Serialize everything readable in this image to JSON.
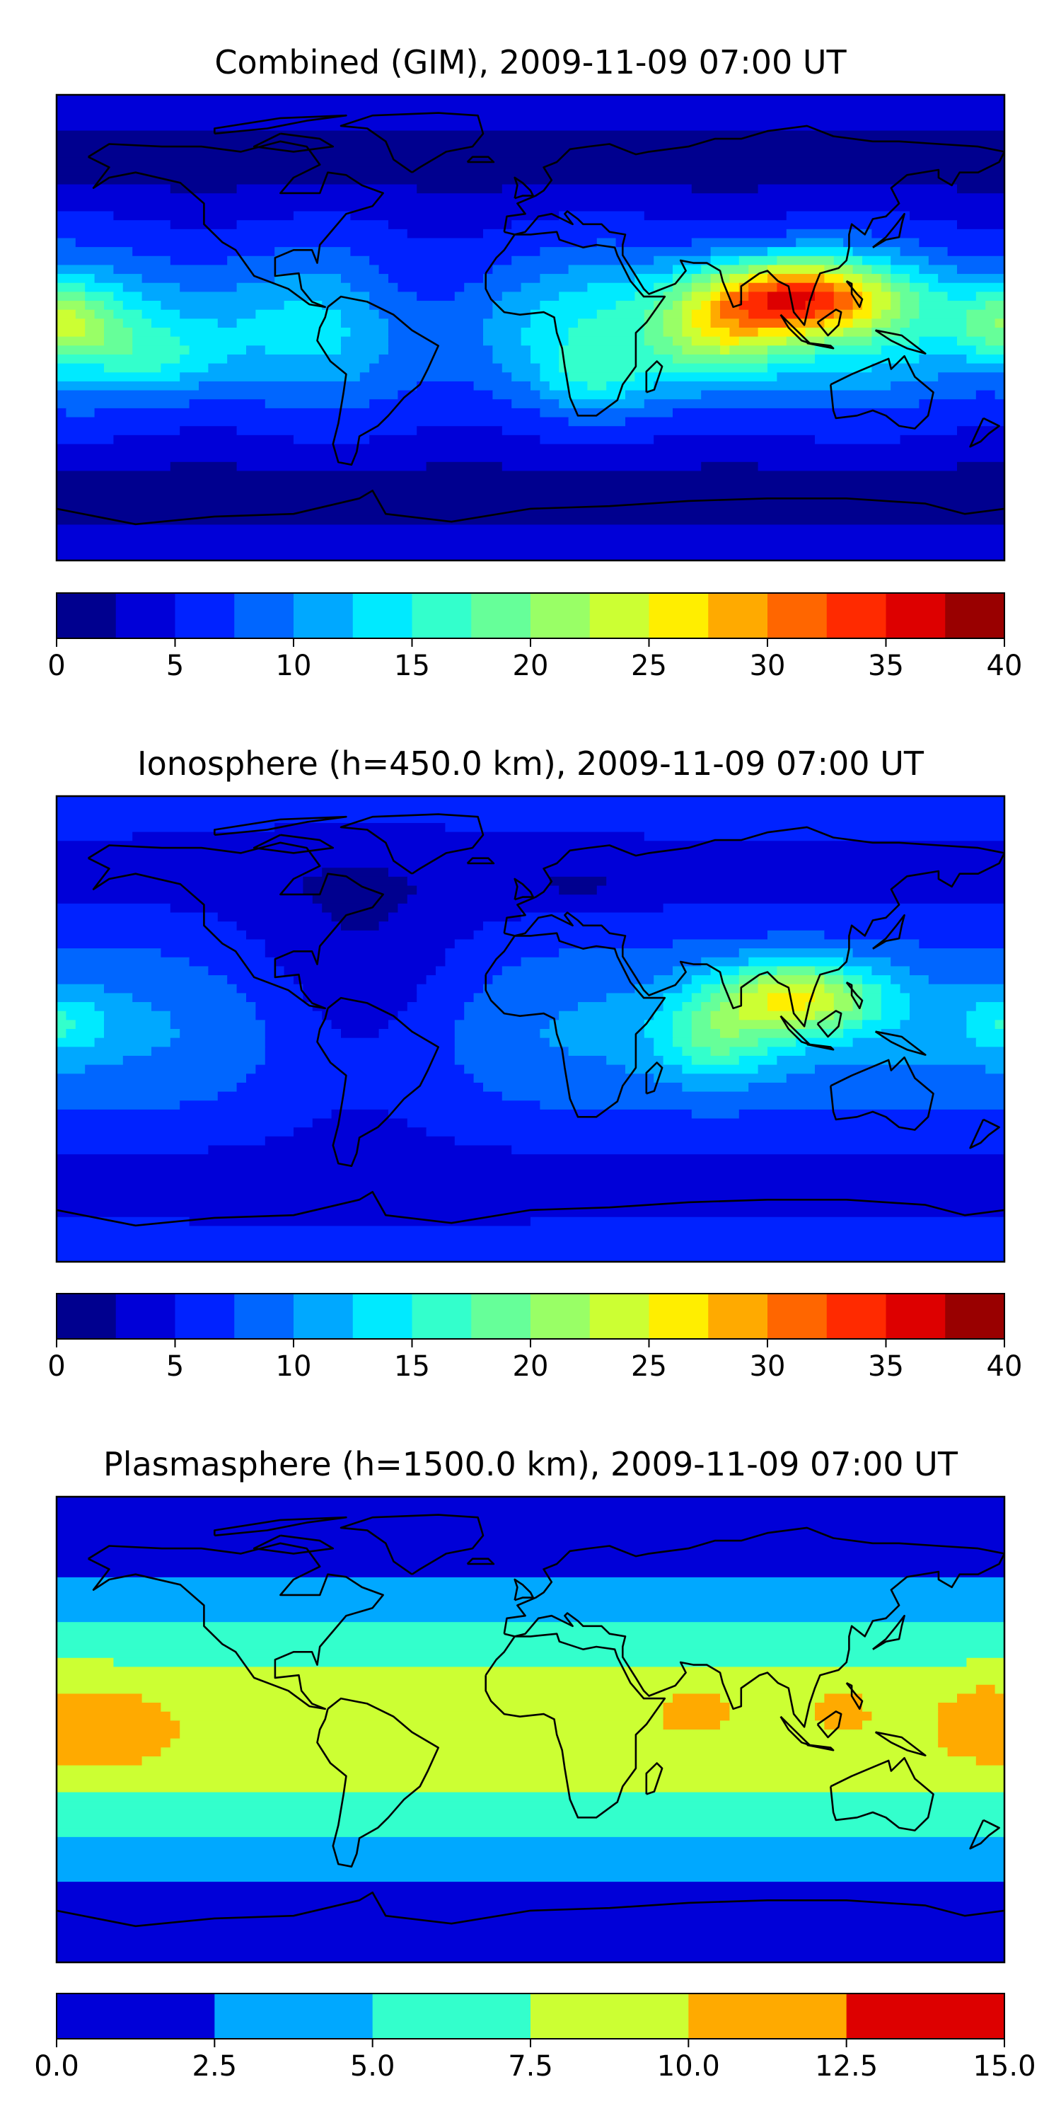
{
  "colors": {
    "jet": [
      "#00008f",
      "#0000d8",
      "#0022ff",
      "#0066ff",
      "#00a8ff",
      "#00eaff",
      "#33ffcc",
      "#66ff99",
      "#99ff66",
      "#ccff33",
      "#ffee00",
      "#ffaa00",
      "#ff6600",
      "#ff2a00",
      "#dd0000",
      "#990000"
    ]
  },
  "chart_data": [
    {
      "type": "heatmap",
      "title": "Combined (GIM), 2009-11-09 07:00 UT",
      "xlabel": "",
      "ylabel": "",
      "map": "world coastlines, equirectangular projection",
      "colorbar": {
        "range": [
          0,
          40
        ],
        "levels": [
          0,
          2.5,
          5,
          7.5,
          10,
          12.5,
          15,
          17.5,
          20,
          22.5,
          25,
          27.5,
          30,
          32.5,
          35,
          37.5,
          40
        ],
        "ticks": [
          0,
          5,
          10,
          15,
          20,
          25,
          30,
          35,
          40
        ],
        "tick_labels": [
          "0",
          "5",
          "10",
          "15",
          "20",
          "25",
          "30",
          "35",
          "40"
        ]
      },
      "features": [
        {
          "region": "south / southeast Asia",
          "lon": 100,
          "lat": 10,
          "value": 36
        },
        {
          "region": "Indian Ocean",
          "lon": 70,
          "lat": -5,
          "value": 26
        },
        {
          "region": "central Pacific",
          "lon": -178,
          "lat": 2,
          "value": 22
        },
        {
          "region": "eastern Pacific",
          "lon": -135,
          "lat": -10,
          "value": 17
        },
        {
          "region": "southern Africa",
          "lon": 25,
          "lat": -20,
          "value": 18
        },
        {
          "region": "South America",
          "lon": -60,
          "lat": -10,
          "value": 11
        },
        {
          "region": "North Atlantic",
          "lon": -40,
          "lat": 45,
          "value": 5
        },
        {
          "region": "polar regions",
          "lon": 0,
          "lat": 80,
          "value": 3
        }
      ]
    },
    {
      "type": "heatmap",
      "title": "Ionosphere  (h=450.0 km), 2009-11-09 07:00 UT",
      "xlabel": "",
      "ylabel": "",
      "map": "world coastlines, equirectangular projection",
      "colorbar": {
        "range": [
          0,
          40
        ],
        "levels": [
          0,
          2.5,
          5,
          7.5,
          10,
          12.5,
          15,
          17.5,
          20,
          22.5,
          25,
          27.5,
          30,
          32.5,
          35,
          37.5,
          40
        ],
        "ticks": [
          0,
          5,
          10,
          15,
          20,
          25,
          30,
          35,
          40
        ],
        "tick_labels": [
          "0",
          "5",
          "10",
          "15",
          "20",
          "25",
          "30",
          "35",
          "40"
        ]
      },
      "features": [
        {
          "region": "south / southeast Asia",
          "lon": 100,
          "lat": 12,
          "value": 26
        },
        {
          "region": "Indian Ocean",
          "lon": 70,
          "lat": -5,
          "value": 18
        },
        {
          "region": "central Pacific",
          "lon": -178,
          "lat": 2,
          "value": 12
        },
        {
          "region": "Americas / Atlantic",
          "lon": -60,
          "lat": 5,
          "value": 2
        },
        {
          "region": "high latitudes",
          "lon": 0,
          "lat": 70,
          "value": 4
        }
      ]
    },
    {
      "type": "heatmap",
      "title": "Plasmasphere (h=1500.0 km), 2009-11-09 07:00 UT",
      "xlabel": "",
      "ylabel": "",
      "map": "world coastlines, equirectangular projection",
      "colorbar": {
        "range": [
          0,
          15
        ],
        "levels": [
          0,
          2.5,
          5,
          7.5,
          10,
          12.5,
          15
        ],
        "ticks": [
          0,
          2.5,
          5,
          7.5,
          10,
          12.5,
          15
        ],
        "tick_labels": [
          "0.0",
          "2.5",
          "5.0",
          "7.5",
          "10.0",
          "12.5",
          "15.0"
        ]
      },
      "features": [
        {
          "region": "central Pacific",
          "lon": -160,
          "lat": 0,
          "value": 11
        },
        {
          "region": "western Pacific",
          "lon": 165,
          "lat": 5,
          "value": 11
        },
        {
          "region": "Arabian Sea",
          "lon": 60,
          "lat": 8,
          "value": 10.5
        },
        {
          "region": "tropical belt",
          "lon": 0,
          "lat": 0,
          "value": 8.5
        },
        {
          "region": "mid latitudes",
          "lon": 0,
          "lat": 40,
          "value": 6
        },
        {
          "region": "high latitudes",
          "lon": 0,
          "lat": 70,
          "value": 1.5
        }
      ]
    }
  ]
}
